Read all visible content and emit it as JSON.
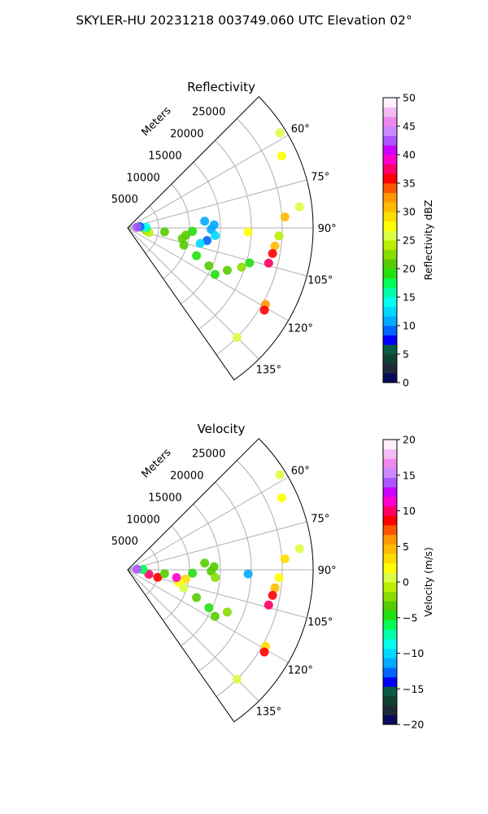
{
  "figure": {
    "title": "SKYLER-HU  20231218  003749.060 UTC Elevation 02°"
  },
  "chart_data": [
    {
      "type": "heatmap",
      "projection": "polar-sector",
      "title": "Reflectivity",
      "range_axis_label": "Meters",
      "range_ticks": [
        5000,
        10000,
        15000,
        20000,
        25000
      ],
      "range_tick_labels": [
        "5000",
        "10000",
        "15000",
        "20000",
        "25000"
      ],
      "rlim": [
        0,
        30000
      ],
      "azimuth_range_deg": [
        45,
        145
      ],
      "azimuth_ticks": [
        60,
        75,
        90,
        105,
        120,
        135
      ],
      "azimuth_tick_labels": [
        "60°",
        "75°",
        "90°",
        "105°",
        "120°",
        "135°"
      ],
      "grid": true,
      "colorbar": {
        "label": "Reflectivity dBZ",
        "min": 0,
        "max": 50,
        "ticks": [
          0,
          5,
          10,
          15,
          20,
          25,
          30,
          35,
          40,
          45,
          50
        ],
        "tick_labels": [
          "0",
          "5",
          "10",
          "15",
          "20",
          "25",
          "30",
          "35",
          "40",
          "45",
          "50"
        ],
        "colors": [
          "#0a0a5c",
          "#1e2a3a",
          "#0f4030",
          "#0a5a45",
          "#0000ff",
          "#0066ff",
          "#00aaff",
          "#00d8ff",
          "#00ffee",
          "#00ffaa",
          "#00ff55",
          "#22e010",
          "#55cc00",
          "#88dd00",
          "#bbee00",
          "#ddff44",
          "#ffff00",
          "#ffdd00",
          "#ffbb00",
          "#ff9900",
          "#ff5500",
          "#ff0000",
          "#ff0066",
          "#ff00cc",
          "#cc00ff",
          "#aa55ff",
          "#cc88ff",
          "#ee88ee",
          "#f5bbf5",
          "#fff0ff"
        ]
      },
      "echoes": [
        {
          "az": 88,
          "r": 14000,
          "value": 10
        },
        {
          "az": 91,
          "r": 13500,
          "value": 11
        },
        {
          "az": 95,
          "r": 14200,
          "value": 12
        },
        {
          "az": 99,
          "r": 13000,
          "value": 9
        },
        {
          "az": 85,
          "r": 12500,
          "value": 10
        },
        {
          "az": 102,
          "r": 12000,
          "value": 13
        },
        {
          "az": 93,
          "r": 10500,
          "value": 19
        },
        {
          "az": 97,
          "r": 9500,
          "value": 20
        },
        {
          "az": 101,
          "r": 9000,
          "value": 21
        },
        {
          "az": 107,
          "r": 9500,
          "value": 20
        },
        {
          "az": 112,
          "r": 12000,
          "value": 19
        },
        {
          "az": 115,
          "r": 14500,
          "value": 20
        },
        {
          "az": 118,
          "r": 16000,
          "value": 19
        },
        {
          "az": 113,
          "r": 17500,
          "value": 21
        },
        {
          "az": 109,
          "r": 19500,
          "value": 22
        },
        {
          "az": 96,
          "r": 6000,
          "value": 20
        },
        {
          "az": 98,
          "r": 3000,
          "value": 23
        },
        {
          "az": 102,
          "r": 3500,
          "value": 24
        },
        {
          "az": 88,
          "r": 3000,
          "value": 14
        },
        {
          "az": 84,
          "r": 2000,
          "value": 9
        },
        {
          "az": 86,
          "r": 1500,
          "value": 42
        },
        {
          "az": 97,
          "r": 24000,
          "value": 30
        },
        {
          "az": 100,
          "r": 23800,
          "value": 35
        },
        {
          "az": 104,
          "r": 23500,
          "value": 37
        },
        {
          "az": 93,
          "r": 24500,
          "value": 24
        },
        {
          "az": 86,
          "r": 25500,
          "value": 30
        },
        {
          "az": 119,
          "r": 25500,
          "value": 33
        },
        {
          "az": 121,
          "r": 25800,
          "value": 36
        },
        {
          "az": 83,
          "r": 28000,
          "value": 25
        },
        {
          "az": 58,
          "r": 29000,
          "value": 26
        },
        {
          "az": 65,
          "r": 27500,
          "value": 28
        },
        {
          "az": 135,
          "r": 25000,
          "value": 26
        },
        {
          "az": 92,
          "r": 19500,
          "value": 27
        },
        {
          "az": 106,
          "r": 20500,
          "value": 19
        }
      ]
    },
    {
      "type": "heatmap",
      "projection": "polar-sector",
      "title": "Velocity",
      "range_axis_label": "Meters",
      "range_ticks": [
        5000,
        10000,
        15000,
        20000,
        25000
      ],
      "range_tick_labels": [
        "5000",
        "10000",
        "15000",
        "20000",
        "25000"
      ],
      "rlim": [
        0,
        30000
      ],
      "azimuth_range_deg": [
        45,
        145
      ],
      "azimuth_ticks": [
        60,
        75,
        90,
        105,
        120,
        135
      ],
      "azimuth_tick_labels": [
        "60°",
        "75°",
        "90°",
        "105°",
        "120°",
        "135°"
      ],
      "grid": true,
      "colorbar": {
        "label": "Velocity (m/s)",
        "min": -20,
        "max": 20,
        "ticks": [
          -20,
          -15,
          -10,
          -5,
          0,
          5,
          10,
          15,
          20
        ],
        "tick_labels": [
          "−20",
          "−15",
          "−10",
          "−5",
          "0",
          "5",
          "10",
          "15",
          "20"
        ],
        "colors": [
          "#0a0a5c",
          "#1e2a3a",
          "#0f4030",
          "#0a5a45",
          "#0000ff",
          "#0066ff",
          "#00aaff",
          "#00d8ff",
          "#00ffee",
          "#00ffaa",
          "#00ff55",
          "#22e010",
          "#55cc00",
          "#88dd00",
          "#bbee00",
          "#ddff44",
          "#ffff00",
          "#ffdd00",
          "#ffbb00",
          "#ff9900",
          "#ff5500",
          "#ff0000",
          "#ff0066",
          "#ff00cc",
          "#cc00ff",
          "#aa55ff",
          "#cc88ff",
          "#ee88ee",
          "#f5bbf5",
          "#fff0ff"
        ]
      },
      "echoes": [
        {
          "az": 88,
          "r": 14000,
          "value": -3
        },
        {
          "az": 91,
          "r": 13500,
          "value": -4
        },
        {
          "az": 95,
          "r": 14200,
          "value": -2
        },
        {
          "az": 85,
          "r": 12500,
          "value": -3
        },
        {
          "az": 93,
          "r": 10500,
          "value": -5
        },
        {
          "az": 99,
          "r": 9500,
          "value": 3
        },
        {
          "az": 104,
          "r": 8500,
          "value": 2
        },
        {
          "az": 108,
          "r": 9500,
          "value": 1
        },
        {
          "az": 112,
          "r": 12000,
          "value": -4
        },
        {
          "az": 115,
          "r": 14500,
          "value": -5
        },
        {
          "az": 118,
          "r": 16000,
          "value": -3
        },
        {
          "az": 113,
          "r": 17500,
          "value": -2
        },
        {
          "az": 102,
          "r": 3500,
          "value": 10
        },
        {
          "az": 104,
          "r": 5000,
          "value": 8
        },
        {
          "az": 96,
          "r": 6000,
          "value": -3
        },
        {
          "az": 88,
          "r": 2500,
          "value": -6
        },
        {
          "az": 86,
          "r": 1500,
          "value": 14
        },
        {
          "az": 97,
          "r": 24000,
          "value": 5
        },
        {
          "az": 100,
          "r": 23800,
          "value": 9
        },
        {
          "az": 104,
          "r": 23500,
          "value": 10
        },
        {
          "az": 93,
          "r": 24500,
          "value": 2
        },
        {
          "az": 86,
          "r": 25500,
          "value": 3
        },
        {
          "az": 119,
          "r": 25500,
          "value": 3
        },
        {
          "az": 121,
          "r": 25800,
          "value": 9
        },
        {
          "az": 83,
          "r": 28000,
          "value": 1
        },
        {
          "az": 58,
          "r": 29000,
          "value": 1
        },
        {
          "az": 65,
          "r": 27500,
          "value": 2
        },
        {
          "az": 135,
          "r": 25000,
          "value": 1
        },
        {
          "az": 92,
          "r": 19500,
          "value": -11
        },
        {
          "az": 99,
          "r": 8000,
          "value": 11
        }
      ]
    }
  ]
}
